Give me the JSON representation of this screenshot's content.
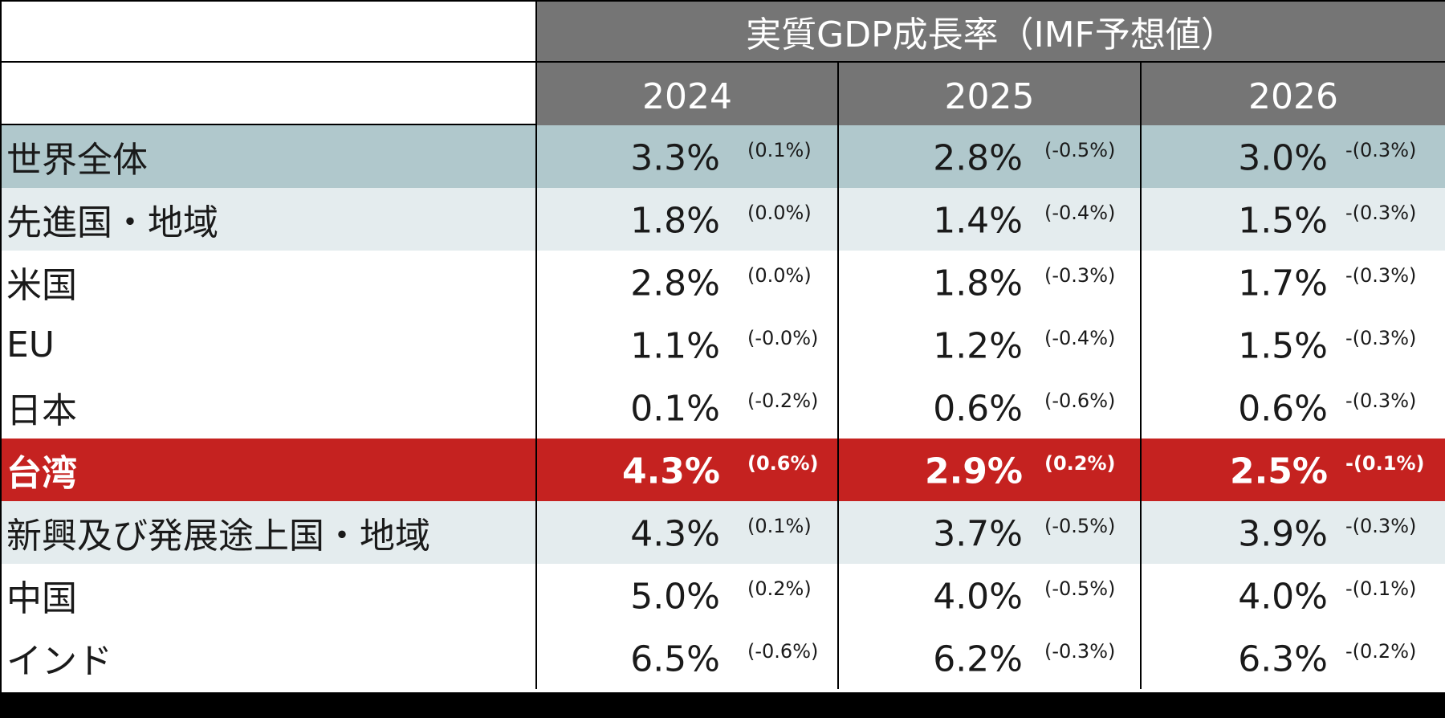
{
  "table": {
    "title": "実質GDP成長率（IMF予想値）",
    "years": [
      "2024",
      "2025",
      "2026"
    ],
    "colors": {
      "header_bg": "#757575",
      "world_bg": "#b0c8cc",
      "light_bg": "#e4ecee",
      "highlight_bg": "#c52220",
      "frame": "#000000"
    },
    "rows": [
      {
        "label": "世界全体",
        "v": [
          "3.3%",
          "2.8%",
          "3.0%"
        ],
        "d": [
          "(0.1%)",
          "(-0.5%)",
          "-(0.3%)"
        ]
      },
      {
        "label": "先進国・地域",
        "v": [
          "1.8%",
          "1.4%",
          "1.5%"
        ],
        "d": [
          "(0.0%)",
          "(-0.4%)",
          "-(0.3%)"
        ]
      },
      {
        "label": "米国",
        "v": [
          "2.8%",
          "1.8%",
          "1.7%"
        ],
        "d": [
          "(0.0%)",
          "(-0.3%)",
          "-(0.3%)"
        ]
      },
      {
        "label": "EU",
        "v": [
          "1.1%",
          "1.2%",
          "1.5%"
        ],
        "d": [
          "(-0.0%)",
          "(-0.4%)",
          "-(0.3%)"
        ]
      },
      {
        "label": "日本",
        "v": [
          "0.1%",
          "0.6%",
          "0.6%"
        ],
        "d": [
          "(-0.2%)",
          "(-0.6%)",
          "-(0.3%)"
        ]
      },
      {
        "label": "台湾",
        "v": [
          "4.3%",
          "2.9%",
          "2.5%"
        ],
        "d": [
          "(0.6%)",
          "(0.2%)",
          "-(0.1%)"
        ]
      },
      {
        "label": "新興及び発展途上国・地域",
        "v": [
          "4.3%",
          "3.7%",
          "3.9%"
        ],
        "d": [
          "(0.1%)",
          "(-0.5%)",
          "-(0.3%)"
        ]
      },
      {
        "label": "中国",
        "v": [
          "5.0%",
          "4.0%",
          "4.0%"
        ],
        "d": [
          "(0.2%)",
          "(-0.5%)",
          "-(0.1%)"
        ]
      },
      {
        "label": "インド",
        "v": [
          "6.5%",
          "6.2%",
          "6.3%"
        ],
        "d": [
          "(-0.6%)",
          "(-0.3%)",
          "-(0.2%)"
        ]
      }
    ]
  }
}
